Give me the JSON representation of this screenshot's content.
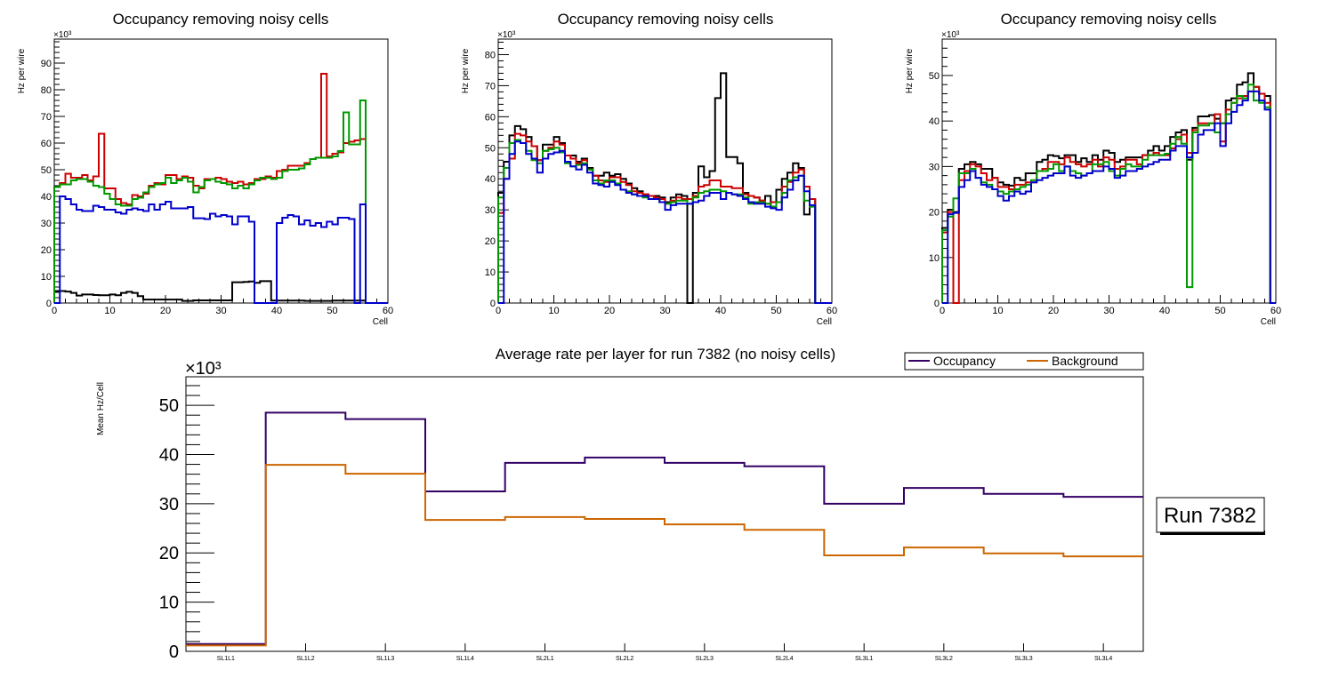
{
  "colors": {
    "black": "#000000",
    "red": "#cc0000",
    "green": "#009900",
    "blue": "#0000cc",
    "occupancy": "#330066",
    "background": "#cc6600"
  },
  "run_label": "Run 7382",
  "chart_data": [
    {
      "type": "line",
      "subtype": "step-histogram",
      "title": "Occupancy removing noisy cells",
      "xlabel": "Cell",
      "ylabel": "Hz per wire",
      "y_multiplier": "×10³",
      "xlim": [
        0,
        60
      ],
      "ylim": [
        0,
        99
      ],
      "xticks": [
        0,
        10,
        20,
        30,
        40,
        50,
        60
      ],
      "yticks": [
        0,
        10,
        20,
        30,
        40,
        50,
        60,
        70,
        80,
        90
      ],
      "series": [
        {
          "name": "black",
          "values": [
            4.5,
            4.5,
            4.3,
            3.8,
            2.8,
            3.2,
            3.2,
            3.0,
            2.9,
            2.9,
            3.2,
            2.9,
            3.8,
            4.2,
            3.8,
            2.6,
            1.3,
            1.3,
            1.3,
            1.3,
            1.3,
            1.3,
            1.3,
            0.8,
            0.8,
            1.0,
            1.0,
            1.0,
            1.0,
            1.0,
            1.0,
            1.0,
            7.8,
            7.8,
            7.9,
            8.1,
            7.6,
            8.2,
            8.2,
            0.9,
            0.9,
            0.9,
            0.9,
            0.9,
            0.9,
            0.8,
            0.8,
            0.8,
            0.8,
            0.8,
            0.9,
            0.9,
            0.9,
            0.9,
            0.9,
            0.9,
            0,
            0,
            0,
            0
          ]
        },
        {
          "name": "red",
          "values": [
            43.5,
            45.0,
            48.5,
            47.0,
            47.0,
            48.0,
            46.0,
            47.5,
            63.5,
            43.0,
            43.0,
            39.0,
            37.5,
            37.0,
            40.5,
            40.0,
            41.0,
            44.0,
            45.0,
            44.5,
            48.0,
            48.0,
            46.5,
            47.5,
            47.0,
            44.0,
            43.0,
            46.5,
            46.5,
            47.0,
            46.5,
            45.5,
            45.0,
            45.5,
            44.5,
            45.0,
            46.5,
            46.5,
            47.5,
            47.0,
            49.5,
            50.0,
            51.5,
            51.5,
            51.5,
            52.5,
            54.0,
            54.5,
            86.0,
            55.0,
            56.0,
            56.5,
            60.0,
            60.5,
            61.0,
            61.5,
            0,
            0,
            0,
            0
          ]
        },
        {
          "name": "green",
          "values": [
            43.5,
            44.5,
            44.5,
            46.0,
            46.5,
            46.5,
            45.5,
            44.0,
            43.5,
            41.0,
            39.0,
            37.0,
            36.5,
            36.5,
            39.0,
            39.5,
            41.5,
            43.5,
            44.5,
            45.0,
            47.0,
            45.0,
            46.0,
            47.0,
            45.5,
            41.5,
            43.5,
            46.0,
            46.5,
            45.5,
            45.0,
            44.5,
            43.0,
            44.0,
            43.0,
            44.5,
            46.0,
            47.0,
            47.0,
            46.5,
            47.0,
            49.5,
            50.0,
            50.0,
            50.5,
            52.0,
            54.0,
            54.5,
            54.5,
            54.5,
            55.0,
            57.0,
            71.5,
            59.5,
            59.5,
            76.0,
            0,
            0,
            0,
            0
          ]
        },
        {
          "name": "blue",
          "values": [
            0,
            40.0,
            39.0,
            37.0,
            35.0,
            34.5,
            34.5,
            36.5,
            36.0,
            35.0,
            35.0,
            34.0,
            33.5,
            35.0,
            35.5,
            35.0,
            34.5,
            37.0,
            35.0,
            37.0,
            38.0,
            35.5,
            35.5,
            35.5,
            36.0,
            31.8,
            31.8,
            31.5,
            33.5,
            32.5,
            33.0,
            32.5,
            29.5,
            32.5,
            32.5,
            30.5,
            0,
            0,
            0,
            0,
            30.0,
            32.0,
            33.0,
            32.5,
            29.5,
            31.0,
            29.0,
            30.0,
            28.5,
            30.5,
            29.5,
            32.0,
            32.0,
            31.5,
            0,
            37.0,
            0,
            0,
            0,
            0
          ]
        }
      ]
    },
    {
      "type": "line",
      "subtype": "step-histogram",
      "title": "Occupancy removing noisy cells",
      "xlabel": "Cell",
      "ylabel": "Hz per wire",
      "y_multiplier": "×10³",
      "xlim": [
        0,
        60
      ],
      "ylim": [
        0,
        85
      ],
      "xticks": [
        0,
        10,
        20,
        30,
        40,
        50,
        60
      ],
      "yticks": [
        0,
        10,
        20,
        30,
        40,
        50,
        60,
        70,
        80
      ],
      "series": [
        {
          "name": "black",
          "values": [
            35.5,
            45.5,
            54.0,
            57.0,
            56.0,
            53.5,
            50.5,
            46.0,
            51.0,
            51.0,
            53.5,
            51.5,
            47.5,
            47.5,
            45.5,
            46.5,
            43.5,
            41.0,
            41.0,
            42.0,
            41.0,
            41.5,
            40.0,
            38.5,
            37.0,
            36.0,
            35.0,
            34.5,
            34.5,
            34.0,
            32.5,
            34.0,
            35.0,
            34.5,
            0,
            35.5,
            44.0,
            40.5,
            42.5,
            66.0,
            74.0,
            47.0,
            47.0,
            45.0,
            35.5,
            34.5,
            34.0,
            33.0,
            34.5,
            31.0,
            36.5,
            40.0,
            42.0,
            45.0,
            43.5,
            28.5,
            33.5,
            0,
            0,
            0
          ]
        },
        {
          "name": "red",
          "values": [
            29.0,
            40.0,
            46.5,
            54.5,
            54.0,
            52.0,
            50.5,
            46.0,
            49.0,
            50.0,
            52.0,
            51.0,
            47.5,
            46.5,
            45.0,
            46.0,
            43.0,
            41.0,
            39.5,
            39.0,
            40.5,
            40.5,
            39.0,
            38.0,
            36.0,
            35.5,
            35.0,
            34.5,
            34.0,
            33.5,
            32.0,
            33.0,
            34.0,
            33.5,
            33.5,
            34.5,
            37.5,
            38.0,
            39.5,
            39.5,
            37.5,
            37.5,
            37.0,
            37.0,
            35.0,
            34.5,
            34.0,
            33.0,
            32.0,
            32.5,
            32.5,
            37.5,
            39.0,
            42.0,
            43.0,
            37.5,
            33.5,
            0,
            0,
            0
          ]
        },
        {
          "name": "green",
          "values": [
            34.0,
            43.5,
            51.5,
            52.5,
            51.5,
            49.0,
            46.0,
            45.0,
            49.0,
            49.5,
            50.0,
            48.5,
            45.0,
            44.0,
            44.5,
            45.0,
            43.0,
            39.5,
            38.5,
            39.5,
            39.5,
            38.5,
            36.5,
            36.0,
            35.0,
            34.5,
            34.0,
            33.5,
            33.5,
            32.5,
            32.0,
            32.5,
            33.0,
            33.0,
            32.0,
            34.0,
            35.5,
            36.0,
            36.5,
            36.5,
            36.0,
            35.5,
            35.0,
            35.0,
            34.0,
            32.0,
            32.5,
            32.5,
            32.0,
            31.0,
            32.5,
            35.5,
            39.5,
            40.5,
            41.0,
            33.0,
            31.0,
            0,
            0,
            0
          ]
        },
        {
          "name": "blue",
          "values": [
            0,
            40.0,
            48.0,
            52.0,
            51.5,
            48.0,
            46.5,
            42.0,
            46.5,
            48.0,
            48.5,
            49.0,
            45.5,
            44.0,
            43.0,
            44.5,
            42.0,
            38.5,
            38.0,
            37.5,
            39.0,
            38.0,
            36.5,
            35.5,
            35.0,
            34.5,
            34.5,
            33.5,
            33.5,
            32.5,
            30.0,
            31.5,
            32.0,
            32.0,
            32.0,
            32.5,
            33.0,
            34.5,
            35.5,
            35.5,
            33.5,
            35.5,
            35.0,
            34.5,
            33.5,
            32.5,
            32.0,
            32.0,
            31.0,
            30.5,
            30.0,
            34.0,
            36.5,
            39.5,
            41.0,
            36.0,
            31.5,
            0,
            0,
            0
          ]
        }
      ]
    },
    {
      "type": "line",
      "subtype": "step-histogram",
      "title": "Occupancy removing noisy cells",
      "xlabel": "Cell",
      "ylabel": "Hz per wire",
      "y_multiplier": "×10³",
      "xlim": [
        0,
        60
      ],
      "ylim": [
        0,
        58
      ],
      "xticks": [
        0,
        10,
        20,
        30,
        40,
        50,
        60
      ],
      "yticks": [
        0,
        10,
        20,
        30,
        40,
        50
      ],
      "series": [
        {
          "name": "black",
          "values": [
            16.5,
            20.5,
            20.0,
            29.5,
            30.5,
            31.0,
            30.5,
            29.5,
            29.5,
            27.5,
            26.5,
            26.0,
            25.8,
            27.5,
            27.0,
            28.5,
            28.5,
            31.0,
            31.5,
            32.5,
            32.3,
            31.8,
            32.5,
            32.5,
            31.0,
            31.8,
            31.0,
            32.5,
            31.5,
            33.5,
            33.0,
            31.0,
            31.5,
            32.0,
            32.0,
            32.0,
            32.5,
            33.5,
            34.5,
            33.5,
            34.5,
            36.5,
            37.5,
            38.0,
            31.5,
            38.5,
            41.0,
            41.0,
            41.3,
            40.5,
            39.5,
            44.5,
            45.0,
            48.0,
            48.5,
            50.5,
            47.5,
            46.0,
            45.5,
            0
          ]
        },
        {
          "name": "red",
          "values": [
            15.5,
            20.0,
            0,
            27.0,
            29.0,
            30.5,
            30.0,
            28.5,
            27.0,
            27.5,
            25.5,
            25.5,
            25.0,
            26.0,
            26.0,
            26.5,
            26.5,
            29.0,
            29.5,
            31.0,
            31.0,
            30.5,
            32.0,
            31.0,
            30.5,
            30.0,
            30.5,
            31.5,
            30.0,
            32.0,
            31.5,
            29.5,
            30.0,
            31.5,
            31.5,
            30.5,
            32.5,
            32.5,
            33.0,
            32.5,
            32.5,
            34.0,
            36.0,
            37.0,
            33.0,
            38.0,
            39.5,
            39.5,
            39.5,
            41.5,
            35.5,
            42.5,
            44.0,
            45.0,
            45.5,
            46.5,
            47.5,
            46.0,
            44.0,
            0
          ]
        },
        {
          "name": "green",
          "values": [
            16.0,
            19.0,
            23.0,
            28.5,
            28.5,
            29.5,
            27.5,
            26.5,
            26.0,
            25.0,
            24.5,
            24.0,
            24.5,
            25.0,
            25.5,
            26.0,
            27.0,
            29.0,
            29.0,
            29.5,
            30.5,
            29.0,
            30.0,
            29.0,
            28.5,
            28.0,
            28.5,
            30.5,
            30.5,
            31.0,
            29.0,
            28.0,
            29.5,
            30.5,
            30.0,
            30.0,
            31.5,
            32.5,
            32.5,
            32.5,
            32.8,
            35.0,
            36.5,
            35.0,
            3.5,
            37.5,
            39.0,
            39.0,
            39.5,
            37.5,
            39.5,
            41.5,
            44.0,
            45.5,
            45.0,
            48.0,
            44.5,
            44.0,
            43.0,
            0
          ]
        },
        {
          "name": "blue",
          "values": [
            0,
            19.5,
            19.8,
            25.5,
            27.0,
            29.0,
            27.5,
            26.0,
            25.5,
            25.0,
            23.5,
            22.5,
            23.5,
            24.5,
            24.0,
            24.5,
            26.5,
            27.0,
            27.5,
            28.0,
            28.5,
            28.5,
            30.0,
            28.0,
            27.5,
            28.0,
            28.5,
            29.0,
            29.0,
            30.0,
            29.5,
            27.5,
            28.0,
            29.0,
            29.0,
            29.5,
            30.0,
            30.5,
            31.0,
            31.5,
            31.5,
            33.5,
            34.5,
            34.5,
            32.0,
            33.0,
            37.0,
            38.0,
            38.0,
            39.5,
            34.5,
            39.5,
            42.0,
            43.5,
            44.5,
            46.5,
            46.5,
            44.5,
            42.5,
            0
          ]
        }
      ]
    },
    {
      "type": "line",
      "subtype": "step-histogram",
      "title": "Average rate per layer for run 7382 (no noisy cells)",
      "xlabel": "",
      "ylabel": "Mean Hz/Cell",
      "y_multiplier": "×10³",
      "categories": [
        "SL1L1",
        "SL1L2",
        "SL1L3",
        "SL1L4",
        "SL2L1",
        "SL2L2",
        "SL2L3",
        "SL2L4",
        "SL3L1",
        "SL3L2",
        "SL3L3",
        "SL3L4"
      ],
      "ylim": [
        0,
        55.8
      ],
      "yticks": [
        0,
        10,
        20,
        30,
        40,
        50
      ],
      "legend": {
        "position": "top-right",
        "entries": [
          "Occupancy",
          "Background"
        ]
      },
      "series": [
        {
          "name": "Occupancy",
          "values": [
            1.5,
            48.5,
            47.2,
            32.5,
            38.3,
            39.4,
            38.3,
            37.6,
            30.0,
            33.2,
            32.0,
            31.4
          ]
        },
        {
          "name": "Background",
          "values": [
            1.2,
            37.9,
            36.1,
            26.7,
            27.3,
            26.9,
            25.8,
            24.7,
            19.5,
            21.1,
            19.9,
            19.3
          ]
        }
      ]
    }
  ]
}
